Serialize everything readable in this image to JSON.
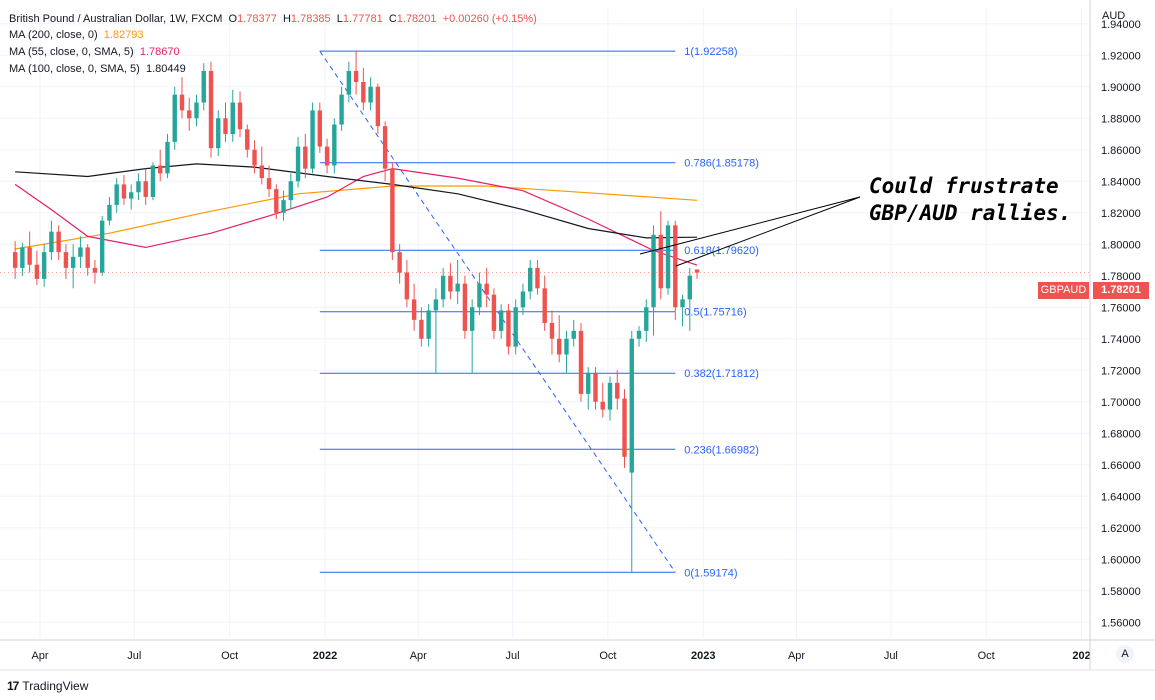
{
  "header": {
    "symbol": "British Pound / Australian Dollar, 1W, FXCM",
    "o_label": "O",
    "o_value": "1.78377",
    "h_label": "H",
    "h_value": "1.78385",
    "l_label": "L",
    "l_value": "1.77781",
    "c_label": "C",
    "c_value": "1.78201",
    "change": "+0.00260 (+0.15%)"
  },
  "indicators": [
    {
      "label": "MA (200, close, 0)",
      "value": "1.82793",
      "color": "#ff9800"
    },
    {
      "label": "MA (55, close, 0, SMA, 5)",
      "value": "1.78670",
      "color": "#e91e63"
    },
    {
      "label": "MA (100, close, 0, SMA, 5)",
      "value": "1.80449",
      "color": "#131722"
    }
  ],
  "annotation": {
    "line1": "Could frustrate",
    "line2": "GBP/AUD rallies."
  },
  "price_axis": {
    "unit": "AUD"
  },
  "last_price": {
    "symbol": "GBPAUD",
    "value": "1.78201"
  },
  "scale_button": "A",
  "branding": {
    "logo_mark": "17",
    "name": "TradingView"
  },
  "colors": {
    "up": "#26a69a",
    "down": "#ef5350",
    "fib": "#2962ff",
    "ma200": "#ff9800",
    "ma55": "#e91e63",
    "ma100": "#131722"
  },
  "chart_data": {
    "type": "candlestick",
    "title": "British Pound / Australian Dollar, 1W, FXCM",
    "ylabel": "AUD",
    "ylim": [
      1.55,
      1.95
    ],
    "y_ticks": [
      "1.94000",
      "1.92000",
      "1.90000",
      "1.88000",
      "1.86000",
      "1.84000",
      "1.82000",
      "1.80000",
      "1.78000",
      "1.76000",
      "1.74000",
      "1.72000",
      "1.70000",
      "1.68000",
      "1.66000",
      "1.64000",
      "1.62000",
      "1.60000",
      "1.58000",
      "1.56000"
    ],
    "x_ticks": [
      "Apr",
      "Jul",
      "Oct",
      "2022",
      "Apr",
      "Jul",
      "Oct",
      "2023",
      "Apr",
      "Jul",
      "Oct",
      "202"
    ],
    "fibonacci": [
      {
        "label": "1(1.92258)",
        "level": 1.92258
      },
      {
        "label": "0.786(1.85178)",
        "level": 1.85178
      },
      {
        "label": "0.618(1.79620)",
        "level": 1.7962
      },
      {
        "label": "0.5(1.75716)",
        "level": 1.75716
      },
      {
        "label": "0.382(1.71812)",
        "level": 1.71812
      },
      {
        "label": "0.236(1.66982)",
        "level": 1.66982
      },
      {
        "label": "0(1.59174)",
        "level": 1.59174
      }
    ],
    "fib_range": {
      "start": "2021-12-27",
      "end": "2022-12-05"
    },
    "trendline": {
      "from": [
        "2021-12-27",
        1.9226
      ],
      "to": [
        "2022-12-05",
        1.5917
      ]
    },
    "candles": [
      [
        "2021-03-08",
        1.795,
        1.802,
        1.778,
        1.785
      ],
      [
        "2021-03-15",
        1.785,
        1.801,
        1.78,
        1.798
      ],
      [
        "2021-03-22",
        1.798,
        1.808,
        1.782,
        1.787
      ],
      [
        "2021-03-29",
        1.787,
        1.796,
        1.774,
        1.778
      ],
      [
        "2021-04-05",
        1.778,
        1.8,
        1.773,
        1.795
      ],
      [
        "2021-04-12",
        1.795,
        1.815,
        1.79,
        1.808
      ],
      [
        "2021-04-19",
        1.808,
        1.812,
        1.79,
        1.795
      ],
      [
        "2021-04-26",
        1.795,
        1.8,
        1.778,
        1.785
      ],
      [
        "2021-05-03",
        1.785,
        1.8,
        1.772,
        1.792
      ],
      [
        "2021-05-10",
        1.792,
        1.805,
        1.785,
        1.798
      ],
      [
        "2021-05-17",
        1.798,
        1.8,
        1.78,
        1.785
      ],
      [
        "2021-05-24",
        1.785,
        1.79,
        1.775,
        1.782
      ],
      [
        "2021-05-31",
        1.782,
        1.818,
        1.78,
        1.815
      ],
      [
        "2021-06-07",
        1.815,
        1.83,
        1.812,
        1.825
      ],
      [
        "2021-06-14",
        1.825,
        1.842,
        1.82,
        1.838
      ],
      [
        "2021-06-21",
        1.838,
        1.844,
        1.825,
        1.829
      ],
      [
        "2021-06-28",
        1.829,
        1.838,
        1.822,
        1.833
      ],
      [
        "2021-07-05",
        1.833,
        1.845,
        1.828,
        1.84
      ],
      [
        "2021-07-12",
        1.84,
        1.848,
        1.825,
        1.83
      ],
      [
        "2021-07-19",
        1.83,
        1.852,
        1.828,
        1.85
      ],
      [
        "2021-07-26",
        1.85,
        1.86,
        1.84,
        1.845
      ],
      [
        "2021-08-02",
        1.845,
        1.87,
        1.842,
        1.865
      ],
      [
        "2021-08-09",
        1.865,
        1.9,
        1.86,
        1.895
      ],
      [
        "2021-08-16",
        1.895,
        1.906,
        1.88,
        1.885
      ],
      [
        "2021-08-23",
        1.885,
        1.893,
        1.872,
        1.88
      ],
      [
        "2021-08-30",
        1.88,
        1.895,
        1.875,
        1.89
      ],
      [
        "2021-09-06",
        1.89,
        1.915,
        1.885,
        1.91
      ],
      [
        "2021-09-13",
        1.91,
        1.916,
        1.855,
        1.861
      ],
      [
        "2021-09-20",
        1.861,
        1.885,
        1.856,
        1.88
      ],
      [
        "2021-09-27",
        1.88,
        1.89,
        1.865,
        1.87
      ],
      [
        "2021-10-04",
        1.87,
        1.898,
        1.865,
        1.89
      ],
      [
        "2021-10-11",
        1.89,
        1.897,
        1.868,
        1.873
      ],
      [
        "2021-10-18",
        1.873,
        1.876,
        1.855,
        1.86
      ],
      [
        "2021-10-25",
        1.86,
        1.866,
        1.845,
        1.85
      ],
      [
        "2021-11-01",
        1.85,
        1.862,
        1.838,
        1.842
      ],
      [
        "2021-11-08",
        1.842,
        1.85,
        1.83,
        1.835
      ],
      [
        "2021-11-15",
        1.835,
        1.838,
        1.816,
        1.82
      ],
      [
        "2021-11-22",
        1.82,
        1.834,
        1.815,
        1.828
      ],
      [
        "2021-11-29",
        1.828,
        1.845,
        1.822,
        1.84
      ],
      [
        "2021-12-06",
        1.84,
        1.868,
        1.836,
        1.862
      ],
      [
        "2021-12-13",
        1.862,
        1.87,
        1.842,
        1.848
      ],
      [
        "2021-12-20",
        1.848,
        1.89,
        1.845,
        1.885
      ],
      [
        "2021-12-27",
        1.885,
        1.89,
        1.858,
        1.862
      ],
      [
        "2022-01-03",
        1.862,
        1.867,
        1.845,
        1.85
      ],
      [
        "2022-01-10",
        1.85,
        1.88,
        1.845,
        1.876
      ],
      [
        "2022-01-17",
        1.876,
        1.9,
        1.872,
        1.895
      ],
      [
        "2022-01-24",
        1.895,
        1.916,
        1.89,
        1.91
      ],
      [
        "2022-01-31",
        1.91,
        1.923,
        1.895,
        1.903
      ],
      [
        "2022-02-07",
        1.903,
        1.912,
        1.885,
        1.89
      ],
      [
        "2022-02-14",
        1.89,
        1.906,
        1.885,
        1.9
      ],
      [
        "2022-02-21",
        1.9,
        1.902,
        1.87,
        1.875
      ],
      [
        "2022-02-28",
        1.875,
        1.878,
        1.84,
        1.848
      ],
      [
        "2022-03-07",
        1.848,
        1.852,
        1.79,
        1.795
      ],
      [
        "2022-03-14",
        1.795,
        1.8,
        1.775,
        1.782
      ],
      [
        "2022-03-21",
        1.782,
        1.79,
        1.76,
        1.765
      ],
      [
        "2022-03-28",
        1.765,
        1.775,
        1.745,
        1.752
      ],
      [
        "2022-04-04",
        1.752,
        1.76,
        1.735,
        1.74
      ],
      [
        "2022-04-11",
        1.74,
        1.762,
        1.735,
        1.758
      ],
      [
        "2022-04-18",
        1.758,
        1.772,
        1.718,
        1.765
      ],
      [
        "2022-04-25",
        1.765,
        1.785,
        1.76,
        1.78
      ],
      [
        "2022-05-02",
        1.78,
        1.788,
        1.765,
        1.77
      ],
      [
        "2022-05-09",
        1.77,
        1.79,
        1.762,
        1.775
      ],
      [
        "2022-05-16",
        1.775,
        1.78,
        1.74,
        1.745
      ],
      [
        "2022-05-23",
        1.745,
        1.765,
        1.718,
        1.76
      ],
      [
        "2022-05-30",
        1.76,
        1.782,
        1.755,
        1.775
      ],
      [
        "2022-06-06",
        1.775,
        1.785,
        1.76,
        1.768
      ],
      [
        "2022-06-13",
        1.768,
        1.772,
        1.74,
        1.745
      ],
      [
        "2022-06-20",
        1.745,
        1.762,
        1.74,
        1.758
      ],
      [
        "2022-06-27",
        1.758,
        1.762,
        1.73,
        1.735
      ],
      [
        "2022-07-04",
        1.735,
        1.765,
        1.73,
        1.76
      ],
      [
        "2022-07-11",
        1.76,
        1.775,
        1.755,
        1.77
      ],
      [
        "2022-07-18",
        1.77,
        1.79,
        1.765,
        1.785
      ],
      [
        "2022-07-25",
        1.785,
        1.79,
        1.768,
        1.772
      ],
      [
        "2022-08-01",
        1.772,
        1.78,
        1.745,
        1.75
      ],
      [
        "2022-08-08",
        1.75,
        1.758,
        1.73,
        1.74
      ],
      [
        "2022-08-15",
        1.74,
        1.755,
        1.725,
        1.73
      ],
      [
        "2022-08-22",
        1.73,
        1.745,
        1.718,
        1.74
      ],
      [
        "2022-08-29",
        1.74,
        1.752,
        1.735,
        1.745
      ],
      [
        "2022-09-05",
        1.745,
        1.75,
        1.7,
        1.705
      ],
      [
        "2022-09-12",
        1.705,
        1.722,
        1.695,
        1.718
      ],
      [
        "2022-09-19",
        1.718,
        1.722,
        1.695,
        1.7
      ],
      [
        "2022-09-26",
        1.7,
        1.712,
        1.69,
        1.695
      ],
      [
        "2022-10-03",
        1.695,
        1.716,
        1.688,
        1.712
      ],
      [
        "2022-10-10",
        1.712,
        1.72,
        1.695,
        1.702
      ],
      [
        "2022-10-17",
        1.702,
        1.708,
        1.658,
        1.665
      ],
      [
        "2022-10-24",
        1.655,
        1.745,
        1.592,
        1.74
      ],
      [
        "2022-10-31",
        1.74,
        1.748,
        1.735,
        1.745
      ],
      [
        "2022-11-07",
        1.745,
        1.765,
        1.738,
        1.76
      ],
      [
        "2022-11-14",
        1.76,
        1.812,
        1.742,
        1.806
      ],
      [
        "2022-11-21",
        1.806,
        1.821,
        1.765,
        1.772
      ],
      [
        "2022-11-28",
        1.772,
        1.815,
        1.768,
        1.812
      ],
      [
        "2022-12-05",
        1.812,
        1.815,
        1.752,
        1.76
      ],
      [
        "2022-12-12",
        1.76,
        1.768,
        1.748,
        1.765
      ],
      [
        "2022-12-19",
        1.765,
        1.785,
        1.745,
        1.78
      ],
      [
        "2022-12-26",
        1.784,
        1.784,
        1.778,
        1.782
      ]
    ],
    "series": [
      {
        "name": "MA (200, close, 0)",
        "color": "#ff9800",
        "points": [
          [
            "2021-03-08",
            1.797
          ],
          [
            "2021-06-07",
            1.807
          ],
          [
            "2021-09-06",
            1.82
          ],
          [
            "2021-12-06",
            1.832
          ],
          [
            "2022-03-07",
            1.837
          ],
          [
            "2022-06-06",
            1.837
          ],
          [
            "2022-09-05",
            1.833
          ],
          [
            "2022-12-26",
            1.8279
          ]
        ]
      },
      {
        "name": "MA (55, close, 0, SMA, 5)",
        "color": "#e91e63",
        "points": [
          [
            "2021-03-08",
            1.838
          ],
          [
            "2021-04-12",
            1.822
          ],
          [
            "2021-05-17",
            1.805
          ],
          [
            "2021-07-12",
            1.798
          ],
          [
            "2021-09-13",
            1.807
          ],
          [
            "2021-11-08",
            1.818
          ],
          [
            "2022-01-03",
            1.83
          ],
          [
            "2022-02-07",
            1.843
          ],
          [
            "2022-03-07",
            1.848
          ],
          [
            "2022-05-09",
            1.842
          ],
          [
            "2022-07-11",
            1.834
          ],
          [
            "2022-09-12",
            1.816
          ],
          [
            "2022-11-14",
            1.796
          ],
          [
            "2022-12-26",
            1.7867
          ]
        ]
      },
      {
        "name": "MA (100, close, 0, SMA, 5)",
        "color": "#131722",
        "points": [
          [
            "2021-03-08",
            1.846
          ],
          [
            "2021-05-17",
            1.843
          ],
          [
            "2021-07-12",
            1.848
          ],
          [
            "2021-08-30",
            1.851
          ],
          [
            "2021-10-25",
            1.849
          ],
          [
            "2022-01-03",
            1.843
          ],
          [
            "2022-03-07",
            1.838
          ],
          [
            "2022-05-09",
            1.832
          ],
          [
            "2022-07-11",
            1.822
          ],
          [
            "2022-09-12",
            1.81
          ],
          [
            "2022-11-07",
            1.804
          ],
          [
            "2022-12-26",
            1.8045
          ]
        ]
      }
    ]
  }
}
